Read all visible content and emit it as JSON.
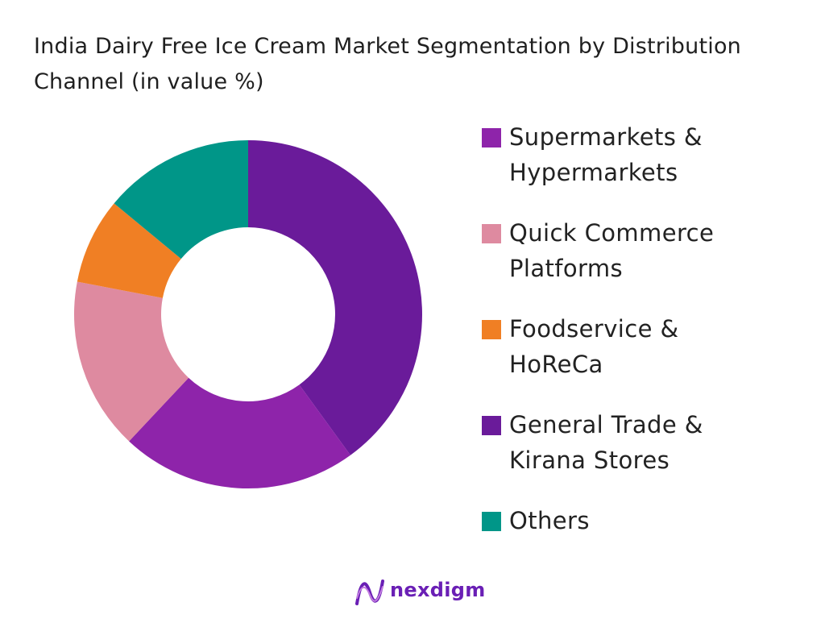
{
  "title": "India Dairy Free Ice Cream Market Segmentation by Distribution Channel (in value %)",
  "chart_data": {
    "type": "pie",
    "donut": true,
    "title": "India Dairy Free Ice Cream Market Segmentation by Distribution Channel (in value %)",
    "legend_position": "right",
    "start_angle": "top, clockwise",
    "slices": [
      {
        "label": "General Trade & Kirana Stores",
        "value": 40,
        "color": "#6a1b9a"
      },
      {
        "label": "Supermarkets & Hypermarkets",
        "value": 22,
        "color": "#8e24aa"
      },
      {
        "label": "Quick Commerce Platforms",
        "value": 16,
        "color": "#de8aa0"
      },
      {
        "label": "Foodservice & HoReCa",
        "value": 8,
        "color": "#f07f24"
      },
      {
        "label": "Others",
        "value": 14,
        "color": "#009688"
      }
    ]
  },
  "legend": [
    {
      "lines": [
        "Supermarkets &",
        "Hypermarkets"
      ],
      "color": "#8e24aa"
    },
    {
      "lines": [
        "Quick Commerce",
        "Platforms"
      ],
      "color": "#de8aa0"
    },
    {
      "lines": [
        "Foodservice &",
        "HoReCa"
      ],
      "color": "#f07f24"
    },
    {
      "lines": [
        "General Trade &",
        "Kirana Stores"
      ],
      "color": "#6a1b9a"
    },
    {
      "lines": [
        "Others"
      ],
      "color": "#009688"
    }
  ],
  "logo": {
    "text": "nexdigm",
    "color": "#6a1fb5"
  }
}
